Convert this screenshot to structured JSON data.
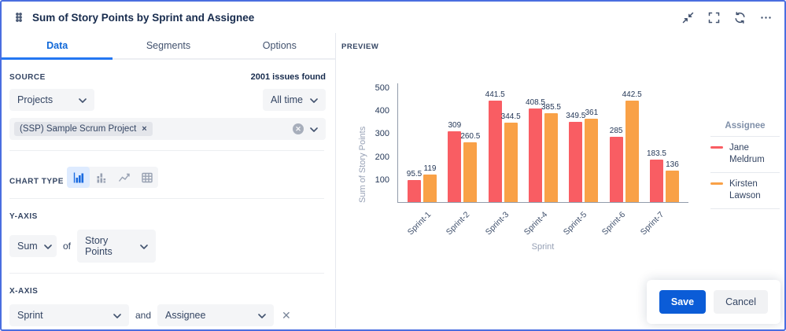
{
  "window": {
    "title": "Sum of Story Points by Sprint and Assignee"
  },
  "header_icons": [
    "drag-handle-icon",
    "collapse-icon",
    "fullscreen-icon",
    "refresh-icon",
    "more-icon"
  ],
  "tabs": [
    {
      "label": "Data",
      "active": true
    },
    {
      "label": "Segments",
      "active": false
    },
    {
      "label": "Options",
      "active": false
    }
  ],
  "source": {
    "label": "SOURCE",
    "issues_found": "2001 issues found",
    "project_selector_value": "Projects",
    "time_selector_value": "All time",
    "selected_project_tag": "(SSP) Sample Scrum Project",
    "tag_remove_glyph": "×",
    "clear_glyph": "✕"
  },
  "chart_type": {
    "label": "CHART TYPE",
    "options": [
      "bar-chart",
      "stacked-bar-chart",
      "line-chart",
      "table"
    ],
    "selected": "bar-chart"
  },
  "y_axis": {
    "label": "Y-AXIS",
    "aggregate_value": "Sum",
    "connector": "of",
    "field_value": "Story Points"
  },
  "x_axis": {
    "label": "X-AXIS",
    "field_value": "Sprint",
    "connector": "and",
    "secondary_field_value": "Assignee",
    "remove_glyph": "✕"
  },
  "preview": {
    "label": "PREVIEW"
  },
  "actions": {
    "save": "Save",
    "cancel": "Cancel"
  },
  "colors": {
    "accent_blue": "#2477f2",
    "save_button_blue": "#0b5cd7",
    "page_border_blue": "#4a6ee0",
    "series_red": "#f95d63",
    "series_orange": "#f9a147"
  },
  "chart_data": {
    "type": "bar",
    "categories": [
      "Sprint-1",
      "Sprint-2",
      "Sprint-3",
      "Sprint-4",
      "Sprint-5",
      "Sprint-6",
      "Sprint-7"
    ],
    "series": [
      {
        "name": "Jane Meldrum",
        "color": "#f95d63",
        "values": [
          95.5,
          309,
          441.5,
          408.5,
          349.5,
          285,
          183.5
        ]
      },
      {
        "name": "Kirsten Lawson",
        "color": "#f9a147",
        "values": [
          119,
          260.5,
          344.5,
          385.5,
          361,
          442.5,
          136
        ]
      }
    ],
    "title": "",
    "xlabel": "Sprint",
    "ylabel": "Sum of Story Points",
    "ylim": [
      0,
      520
    ],
    "yticks": [
      100,
      200,
      300,
      400,
      500
    ],
    "legend_title": "Assignee",
    "legend_position": "right",
    "grid": false
  }
}
